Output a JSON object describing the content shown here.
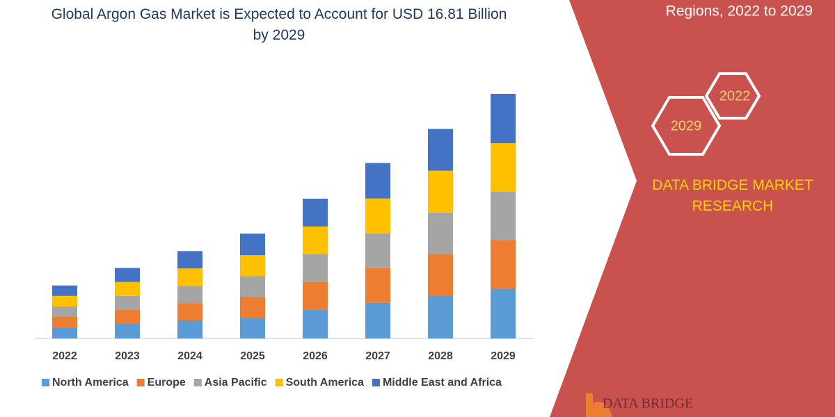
{
  "chart_data": {
    "type": "stacked_bar",
    "title": "Global Argon Gas Market is Expected to Account for USD 16.81 Billion by 2029",
    "categories": [
      "2022",
      "2023",
      "2024",
      "2025",
      "2026",
      "2027",
      "2028",
      "2029"
    ],
    "series": [
      {
        "name": "North America",
        "color": "#5b9bd5",
        "values": [
          0.76,
          1.0,
          1.24,
          1.43,
          1.96,
          2.44,
          2.91,
          3.39
        ]
      },
      {
        "name": "Europe",
        "color": "#ed7d31",
        "values": [
          0.72,
          0.96,
          1.19,
          1.43,
          1.91,
          2.39,
          2.87,
          3.34
        ]
      },
      {
        "name": "Asia Pacific",
        "color": "#a5a5a5",
        "values": [
          0.72,
          0.96,
          1.19,
          1.43,
          1.91,
          2.39,
          2.87,
          3.34
        ]
      },
      {
        "name": "South America",
        "color": "#ffc000",
        "values": [
          0.72,
          0.96,
          1.19,
          1.43,
          1.91,
          2.39,
          2.87,
          3.34
        ]
      },
      {
        "name": "Middle East and Africa",
        "color": "#4472c4",
        "values": [
          0.72,
          0.96,
          1.19,
          1.48,
          1.91,
          2.44,
          2.87,
          3.39
        ]
      }
    ],
    "legend": "bottom"
  },
  "sidebar": {
    "subtitle": "Regions, 2022 to 2029",
    "hex_1": "2022",
    "hex_2": "2029",
    "brand": "DATA BRIDGE MARKET RESEARCH",
    "logo": "DATA BRIDGE"
  }
}
